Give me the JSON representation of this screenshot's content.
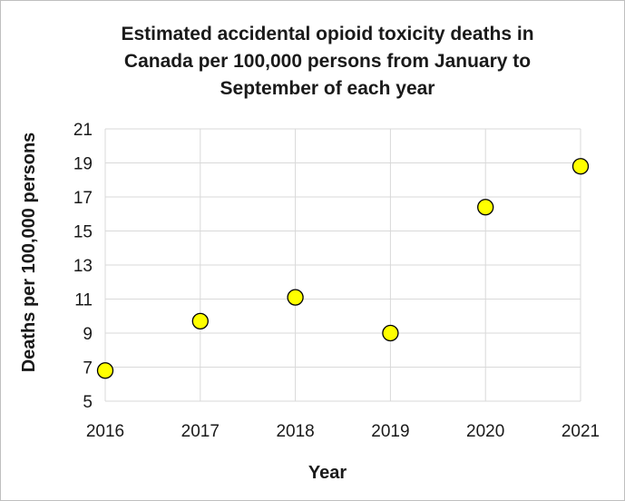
{
  "chart_data": {
    "type": "scatter",
    "title_lines": [
      "Estimated accidental opioid toxicity deaths in",
      "Canada per 100,000 persons from January to",
      "September of each year"
    ],
    "xlabel": "Year",
    "ylabel": "Deaths per 100,000 persons",
    "x": [
      2016,
      2017,
      2018,
      2019,
      2020,
      2021
    ],
    "y": [
      6.8,
      9.7,
      11.1,
      9.0,
      16.4,
      18.8
    ],
    "xlim": [
      2016,
      2021
    ],
    "ylim": [
      5,
      21
    ],
    "x_ticks": [
      "2016",
      "2017",
      "2018",
      "2019",
      "2020",
      "2021"
    ],
    "y_ticks": [
      "5",
      "7",
      "9",
      "11",
      "13",
      "15",
      "17",
      "19",
      "21"
    ],
    "grid": true,
    "legend": "none",
    "marker_color": "#ffff00",
    "marker_edge_color": "#000000",
    "grid_color": "#d9d9d9"
  }
}
